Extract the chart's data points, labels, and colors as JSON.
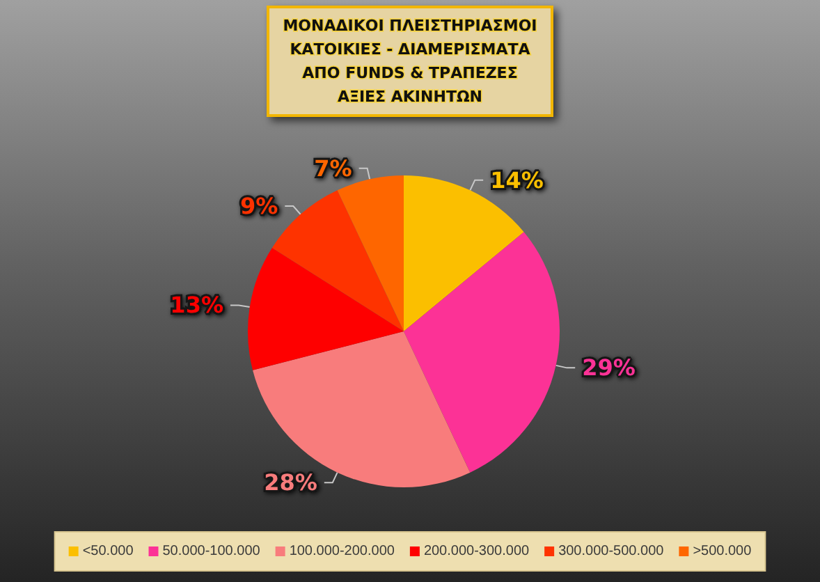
{
  "chart_data": {
    "type": "pie",
    "title": "ΜΟΝΑΔΙΚΟΙ ΠΛΕΙΣΤΗΡΙΑΣΜΟΙ\nΚΑΤΟΙΚΙΕΣ - ΔΙΑΜΕΡΙΣΜΑΤΑ\nΑΠΟ FUNDS & ΤΡΑΠΕΖΕΣ\nΑΞΙΕΣ ΑΚΙΝΗΤΩΝ",
    "categories": [
      "<50.000",
      "50.000-100.000",
      "100.000-200.000",
      "200.000-300.000",
      "300.000-500.000",
      ">500.000"
    ],
    "values": [
      14,
      29,
      28,
      13,
      9,
      7
    ],
    "colors": [
      "#fbbf00",
      "#fc3296",
      "#f87c7c",
      "#fe0000",
      "#fe3300",
      "#fe6600"
    ],
    "value_labels": [
      "14%",
      "29%",
      "28%",
      "13%",
      "9%",
      "7%"
    ],
    "legend": "bottom"
  }
}
